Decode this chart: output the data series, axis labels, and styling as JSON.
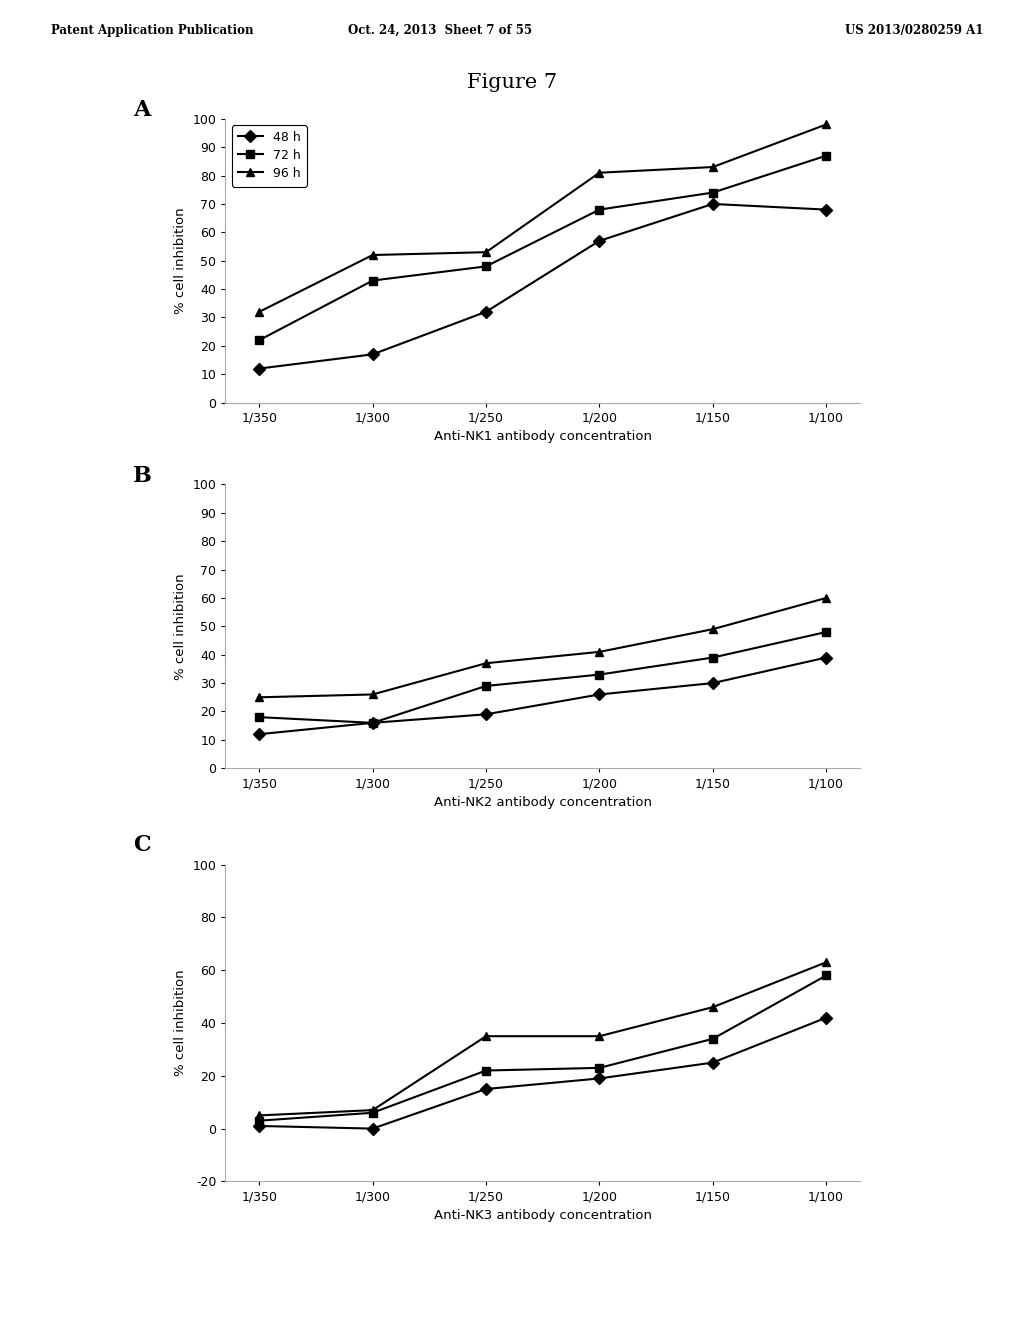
{
  "figure_title": "Figure 7",
  "header_left": "Patent Application Publication",
  "header_mid": "Oct. 24, 2013  Sheet 7 of 55",
  "header_right": "US 2013/0280259 A1",
  "x_labels": [
    "1/350",
    "1/300",
    "1/250",
    "1/200",
    "1/150",
    "1/100"
  ],
  "legend_labels": [
    "48 h",
    "72 h",
    "96 h"
  ],
  "panel_labels": [
    "A",
    "B",
    "C"
  ],
  "chartA": {
    "xlabel": "Anti-NK1 antibody concentration",
    "ylabel": "% cell inhibition",
    "ylim": [
      0,
      100
    ],
    "yticks": [
      0,
      10,
      20,
      30,
      40,
      50,
      60,
      70,
      80,
      90,
      100
    ],
    "series": {
      "48h": [
        12,
        17,
        32,
        57,
        70,
        68
      ],
      "72h": [
        22,
        43,
        48,
        68,
        74,
        87
      ],
      "96h": [
        32,
        52,
        53,
        81,
        83,
        98
      ]
    }
  },
  "chartB": {
    "xlabel": "Anti-NK2 antibody concentration",
    "ylabel": "% cell inhibition",
    "ylim": [
      0,
      100
    ],
    "yticks": [
      0,
      10,
      20,
      30,
      40,
      50,
      60,
      70,
      80,
      90,
      100
    ],
    "series": {
      "48h": [
        12,
        16,
        19,
        26,
        30,
        39
      ],
      "72h": [
        18,
        16,
        29,
        33,
        39,
        48
      ],
      "96h": [
        25,
        26,
        37,
        41,
        49,
        60
      ]
    }
  },
  "chartC": {
    "xlabel": "Anti-NK3 antibody concentration",
    "ylabel": "% cell inhibition",
    "ylim": [
      -20,
      100
    ],
    "yticks": [
      -20,
      0,
      20,
      40,
      60,
      80,
      100
    ],
    "series": {
      "48h": [
        1,
        0,
        15,
        19,
        25,
        42
      ],
      "72h": [
        3,
        6,
        22,
        23,
        34,
        58
      ],
      "96h": [
        5,
        7,
        35,
        35,
        46,
        63
      ]
    }
  },
  "line_color": "#000000",
  "marker_48h": "D",
  "marker_72h": "s",
  "marker_96h": "^",
  "markersize": 6,
  "linewidth": 1.5,
  "bg_color": "#ffffff",
  "font_color": "#000000"
}
